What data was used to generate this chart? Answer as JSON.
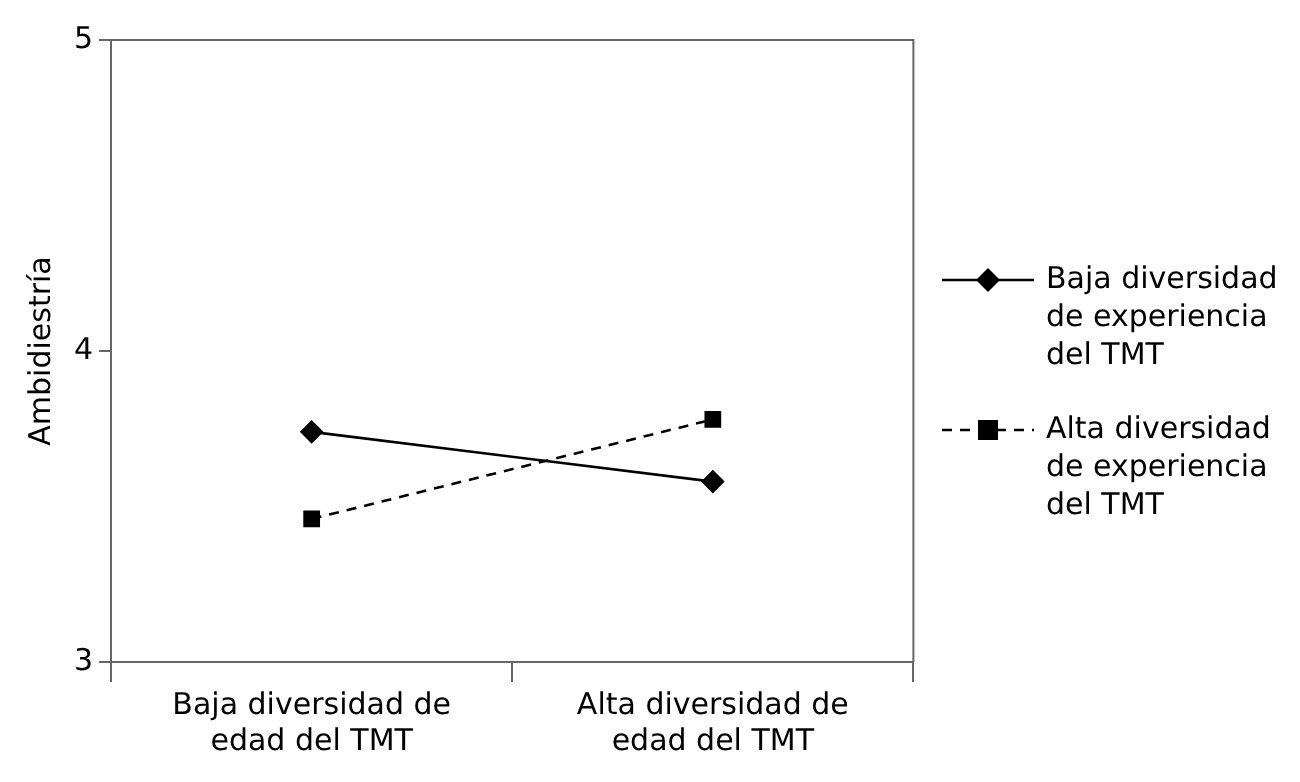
{
  "chart_data": {
    "type": "line",
    "ylabel": "Ambidiestría",
    "categories": [
      "Baja diversidad de edad del TMT",
      "Alta diversidad de edad del TMT"
    ],
    "ylim": [
      3,
      5
    ],
    "yticks": [
      3,
      4,
      5
    ],
    "grid": false,
    "legend": "right",
    "series": [
      {
        "name": "Baja diversidad de experiencia del TMT",
        "color": "#000000",
        "values": [
          3.74,
          3.58
        ],
        "marker": "diamond",
        "line_style": "solid"
      },
      {
        "name": "Alta diversidad de experiencia del TMT",
        "color": "#000000",
        "values": [
          3.46,
          3.78
        ],
        "marker": "square",
        "line_style": "dashed"
      }
    ]
  }
}
